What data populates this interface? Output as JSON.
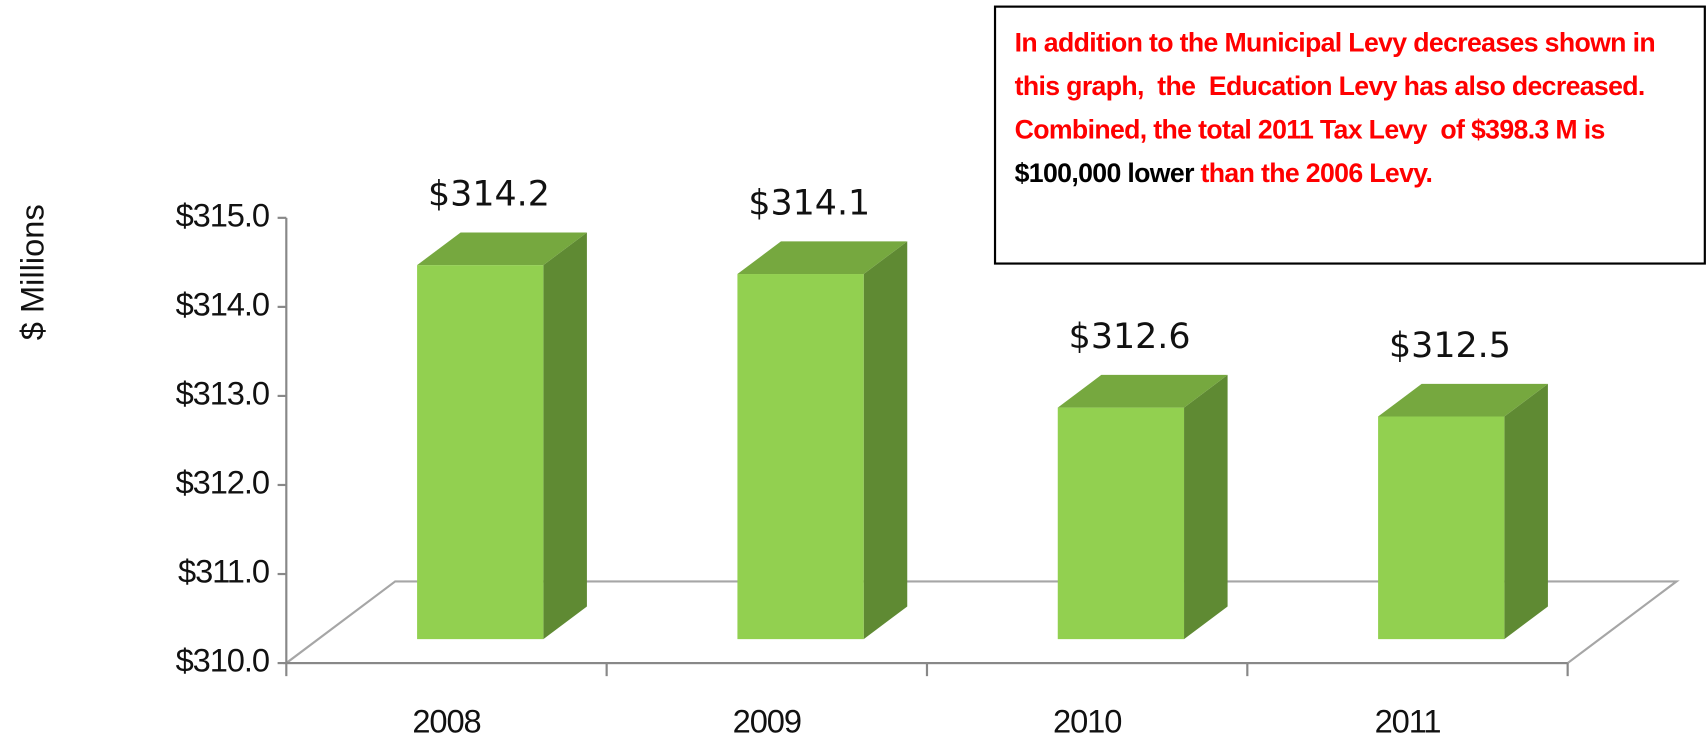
{
  "chart_data": {
    "type": "bar3d",
    "categories": [
      "2008",
      "2009",
      "2010",
      "2011"
    ],
    "values": [
      314.2,
      314.1,
      312.6,
      312.5
    ],
    "value_labels": [
      "$314.2",
      "$314.1",
      "$312.6",
      "$312.5"
    ],
    "y_label": "$ Millions",
    "ylim": [
      310,
      315
    ],
    "yticks": [
      {
        "value": 310,
        "label": "$310.0"
      },
      {
        "value": 311,
        "label": "$311.0"
      },
      {
        "value": 312,
        "label": "$312.0"
      },
      {
        "value": 313,
        "label": "$313.0"
      },
      {
        "value": 314,
        "label": "$314.0"
      },
      {
        "value": 315,
        "label": "$315.0"
      }
    ],
    "color": "#92d050",
    "annotation": [
      {
        "text": "In addition to the Municipal Levy decreases shown in this graph,  the  Education Levy has also decreased.  Combined, the total 2011 Tax Levy  of $398.3 M is ",
        "color": "#ff0000"
      },
      {
        "text": "$100,000 lower",
        "color": "#000000"
      },
      {
        "text": " than the 2006 Levy.",
        "color": "#ff0000"
      }
    ]
  }
}
